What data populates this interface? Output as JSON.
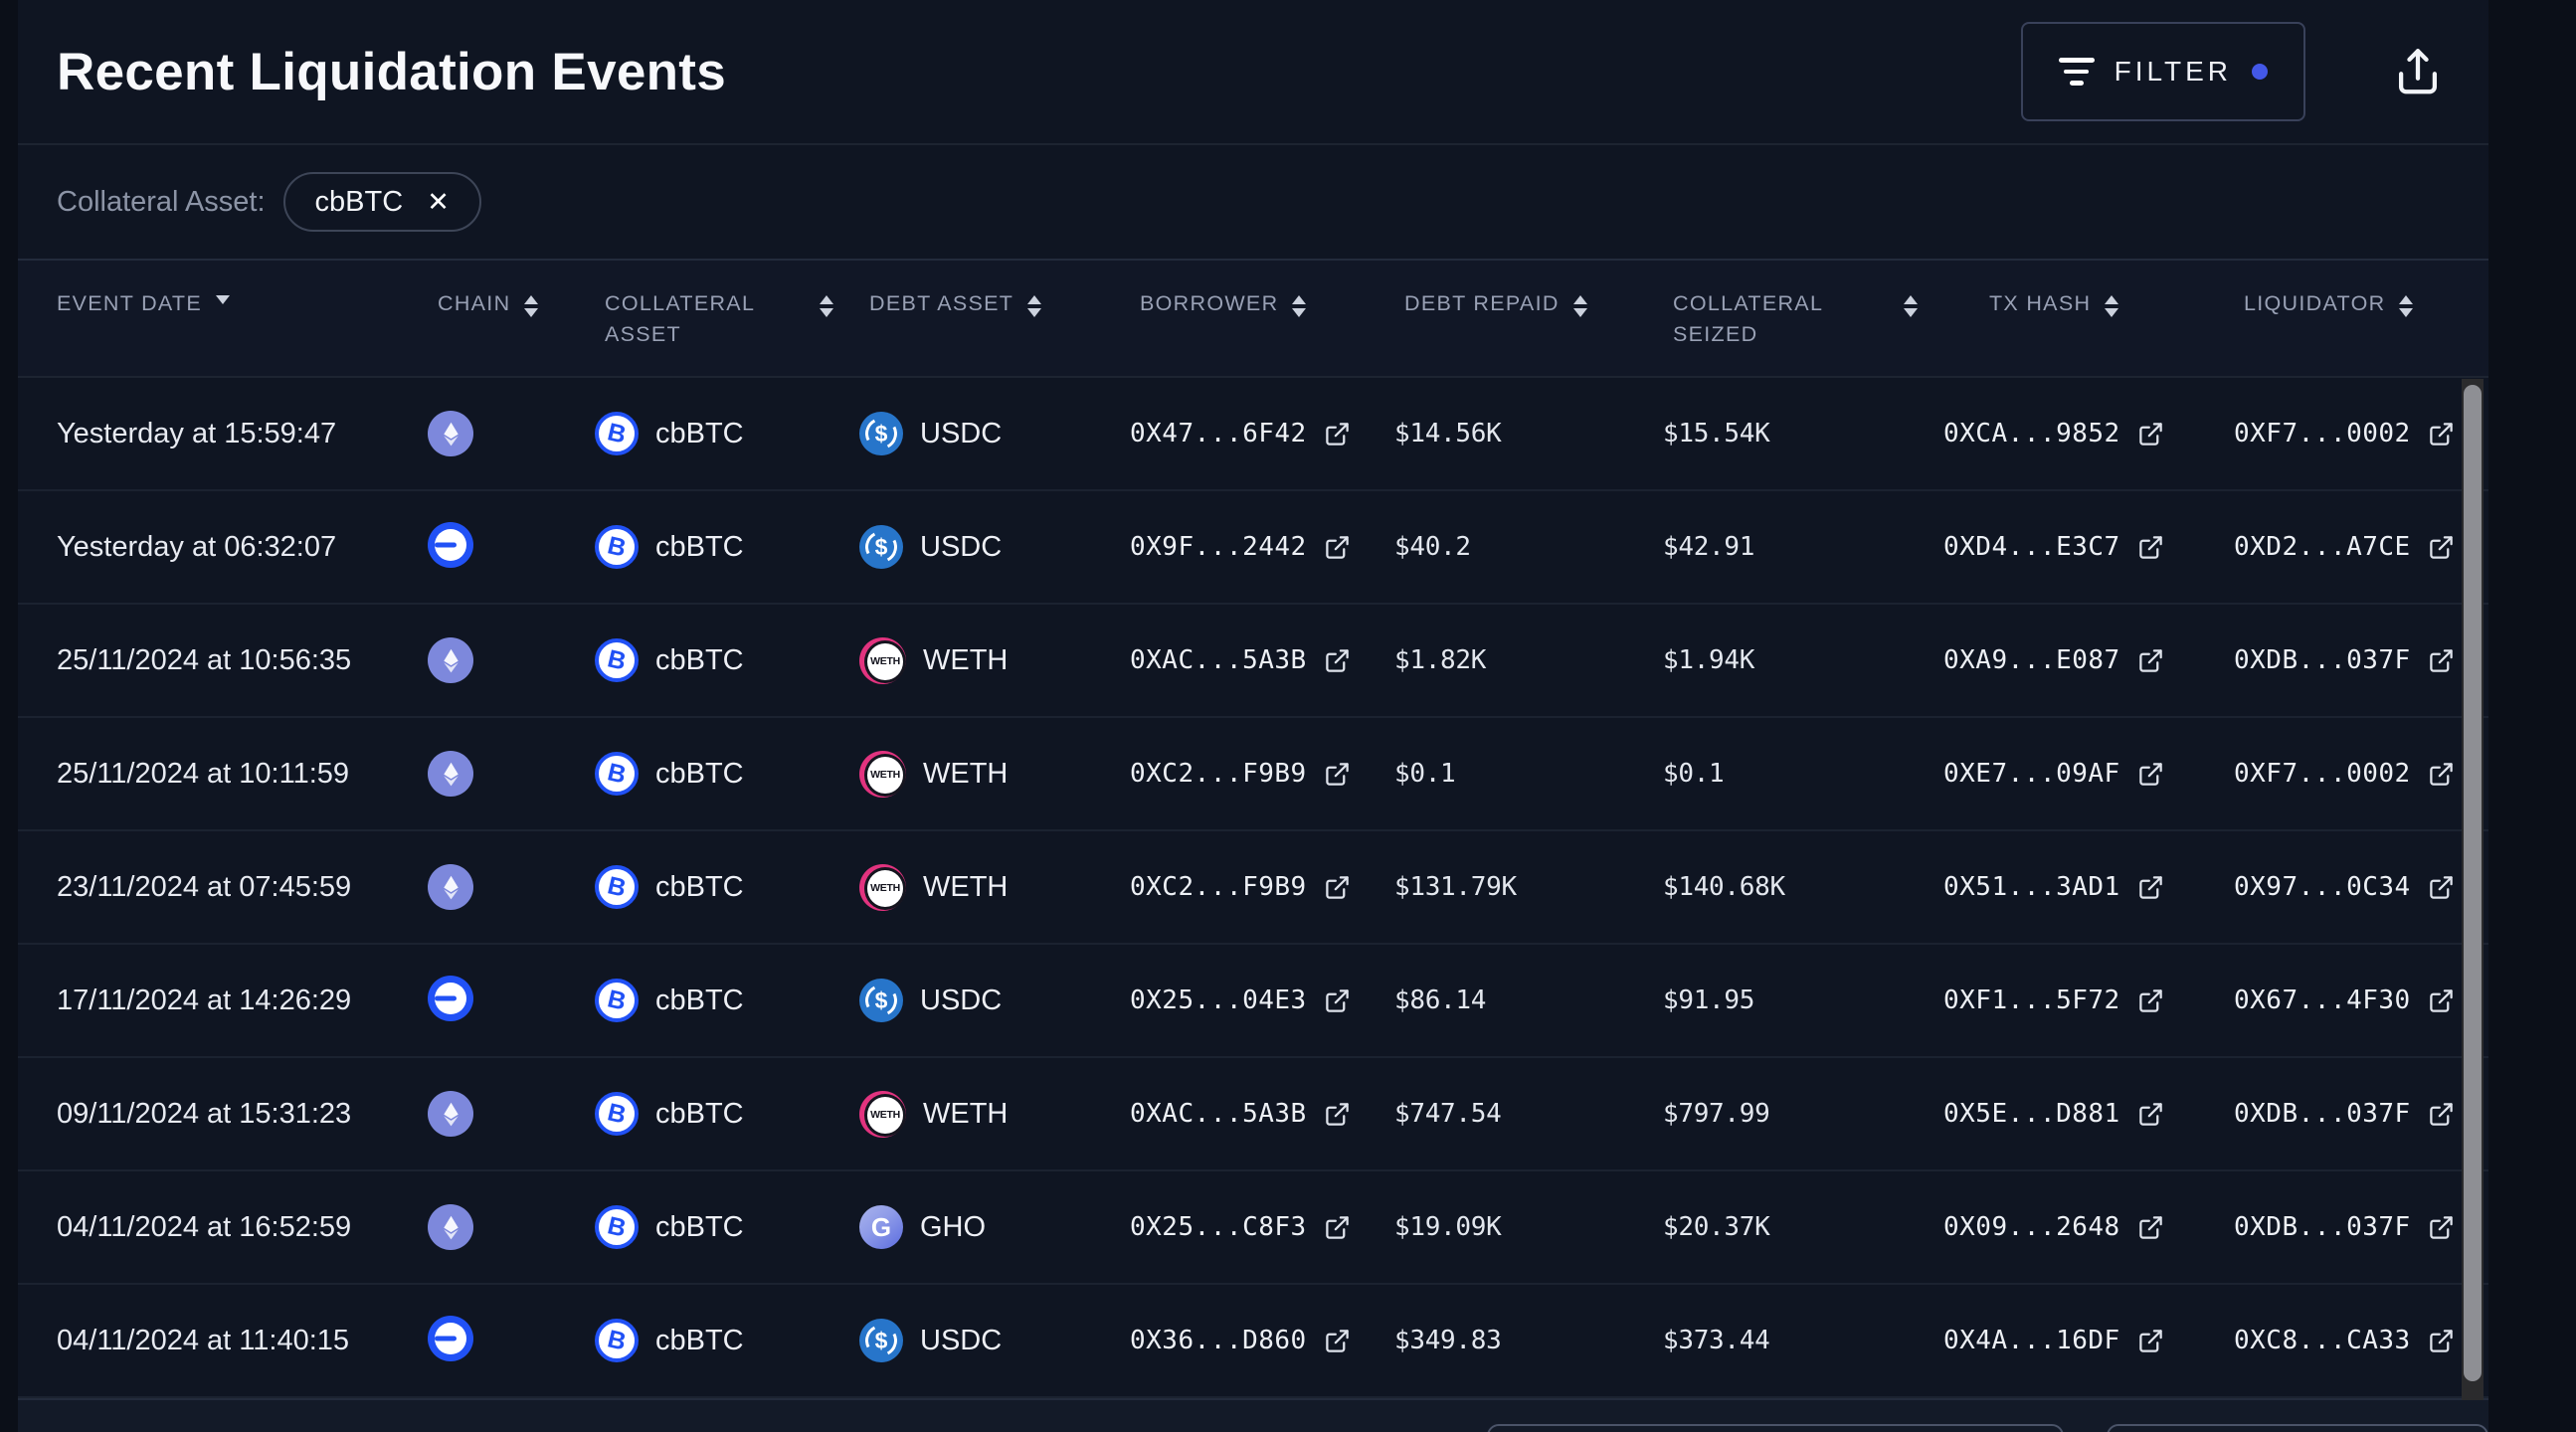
{
  "page_title": "Recent Liquidation Events",
  "toolbar": {
    "filter_button_label": "FILTER",
    "filter_icon": "filter-lines-icon",
    "export_icon": "share-export-icon",
    "filter_active_dot": true
  },
  "filter_bar": {
    "label": "Collateral Asset:",
    "chip": {
      "value": "cbBTC",
      "close_icon": "x-close-icon"
    }
  },
  "table": {
    "columns": [
      {
        "id": "event_date",
        "label": "EVENT DATE",
        "sort": "desc",
        "wrap": false
      },
      {
        "id": "chain",
        "label": "CHAIN",
        "sort": "both",
        "wrap": false
      },
      {
        "id": "collateral_asset",
        "label": "COLLATERAL ASSET",
        "sort": "both",
        "wrap": true
      },
      {
        "id": "debt_asset",
        "label": "DEBT ASSET",
        "sort": "both",
        "wrap": false
      },
      {
        "id": "borrower",
        "label": "BORROWER",
        "sort": "both",
        "wrap": false
      },
      {
        "id": "debt_repaid",
        "label": "DEBT REPAID",
        "sort": "both",
        "wrap": false
      },
      {
        "id": "collateral_seized",
        "label": "COLLATERAL SEIZED",
        "sort": "both",
        "wrap": true
      },
      {
        "id": "tx_hash",
        "label": "TX HASH",
        "sort": "both",
        "wrap": false
      },
      {
        "id": "liquidator",
        "label": "LIQUIDATOR",
        "sort": "both",
        "wrap": false
      }
    ],
    "rows": [
      {
        "event_date": "Yesterday at 15:59:47",
        "chain": "ethereum",
        "collateral_asset": "cbBTC",
        "debt_asset": "USDC",
        "borrower": "0X47...6F42",
        "debt_repaid": "$14.56K",
        "collateral_seized": "$15.54K",
        "tx_hash": "0XCA...9852",
        "liquidator": "0XF7...0002"
      },
      {
        "event_date": "Yesterday at 06:32:07",
        "chain": "base",
        "collateral_asset": "cbBTC",
        "debt_asset": "USDC",
        "borrower": "0X9F...2442",
        "debt_repaid": "$40.2",
        "collateral_seized": "$42.91",
        "tx_hash": "0XD4...E3C7",
        "liquidator": "0XD2...A7CE"
      },
      {
        "event_date": "25/11/2024 at 10:56:35",
        "chain": "ethereum",
        "collateral_asset": "cbBTC",
        "debt_asset": "WETH",
        "borrower": "0XAC...5A3B",
        "debt_repaid": "$1.82K",
        "collateral_seized": "$1.94K",
        "tx_hash": "0XA9...E087",
        "liquidator": "0XDB...037F"
      },
      {
        "event_date": "25/11/2024 at 10:11:59",
        "chain": "ethereum",
        "collateral_asset": "cbBTC",
        "debt_asset": "WETH",
        "borrower": "0XC2...F9B9",
        "debt_repaid": "$0.1",
        "collateral_seized": "$0.1",
        "tx_hash": "0XE7...09AF",
        "liquidator": "0XF7...0002"
      },
      {
        "event_date": "23/11/2024 at 07:45:59",
        "chain": "ethereum",
        "collateral_asset": "cbBTC",
        "debt_asset": "WETH",
        "borrower": "0XC2...F9B9",
        "debt_repaid": "$131.79K",
        "collateral_seized": "$140.68K",
        "tx_hash": "0X51...3AD1",
        "liquidator": "0X97...0C34"
      },
      {
        "event_date": "17/11/2024 at 14:26:29",
        "chain": "base",
        "collateral_asset": "cbBTC",
        "debt_asset": "USDC",
        "borrower": "0X25...04E3",
        "debt_repaid": "$86.14",
        "collateral_seized": "$91.95",
        "tx_hash": "0XF1...5F72",
        "liquidator": "0X67...4F30"
      },
      {
        "event_date": "09/11/2024 at 15:31:23",
        "chain": "ethereum",
        "collateral_asset": "cbBTC",
        "debt_asset": "WETH",
        "borrower": "0XAC...5A3B",
        "debt_repaid": "$747.54",
        "collateral_seized": "$797.99",
        "tx_hash": "0X5E...D881",
        "liquidator": "0XDB...037F"
      },
      {
        "event_date": "04/11/2024 at 16:52:59",
        "chain": "ethereum",
        "collateral_asset": "cbBTC",
        "debt_asset": "GHO",
        "borrower": "0X25...C8F3",
        "debt_repaid": "$19.09K",
        "collateral_seized": "$20.37K",
        "tx_hash": "0X09...2648",
        "liquidator": "0XDB...037F"
      },
      {
        "event_date": "04/11/2024 at 11:40:15",
        "chain": "base",
        "collateral_asset": "cbBTC",
        "debt_asset": "USDC",
        "borrower": "0X36...D860",
        "debt_repaid": "$349.83",
        "collateral_seized": "$373.44",
        "tx_hash": "0X4A...16DF",
        "liquidator": "0XC8...CA33"
      }
    ]
  },
  "icons": {
    "chains": {
      "ethereum": "ethereum-chain-icon",
      "base": "base-chain-icon"
    },
    "assets": {
      "cbBTC": "cbbtc-asset-icon",
      "USDC": "usdc-asset-icon",
      "WETH": "weth-asset-icon",
      "GHO": "gho-asset-icon"
    },
    "row_link": "external-link-icon"
  },
  "colors": {
    "accent_blue": "#2151f5",
    "filter_dot": "#4358e8",
    "ethereum_icon_bg": "#7d88dc",
    "usdc_icon_bg": "#2775ca",
    "weth_icon_pink": "#e2337f",
    "gho_gradient_start": "#aab4ec",
    "gho_gradient_end": "#5b6cdf",
    "card_bg": "#0f1522",
    "page_bg": "#0b0f18",
    "footer_bg": "#131a28"
  }
}
